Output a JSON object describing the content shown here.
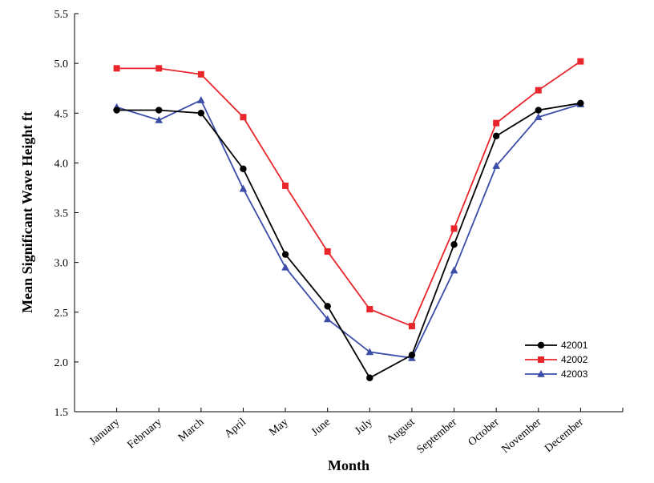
{
  "chart_data": {
    "type": "line",
    "xlabel": "Month",
    "ylabel": "Mean Significant Wave Height ft",
    "categories": [
      "January",
      "February",
      "March",
      "April",
      "May",
      "June",
      "July",
      "August",
      "September",
      "October",
      "November",
      "December"
    ],
    "ylim": [
      1.5,
      5.5
    ],
    "yticks": [
      "1.5",
      "2.0",
      "2.5",
      "3.0",
      "3.5",
      "4.0",
      "4.5",
      "5.0",
      "5.5"
    ],
    "grid": false,
    "legend_position": "lower-right",
    "series": [
      {
        "name": "42001",
        "color": "#000000",
        "marker": "circle",
        "values": [
          4.53,
          4.53,
          4.5,
          3.94,
          3.08,
          2.56,
          1.84,
          2.07,
          3.18,
          4.27,
          4.53,
          4.6
        ]
      },
      {
        "name": "42002",
        "color": "#e8262b",
        "marker": "square",
        "values": [
          4.95,
          4.95,
          4.89,
          4.46,
          3.77,
          3.11,
          2.53,
          2.36,
          3.34,
          4.4,
          4.73,
          5.02
        ]
      },
      {
        "name": "42003",
        "color": "#3b4da8",
        "marker": "triangle",
        "values": [
          4.56,
          4.43,
          4.63,
          3.74,
          2.95,
          2.43,
          2.1,
          2.04,
          2.92,
          3.97,
          4.46,
          4.59
        ]
      }
    ]
  }
}
